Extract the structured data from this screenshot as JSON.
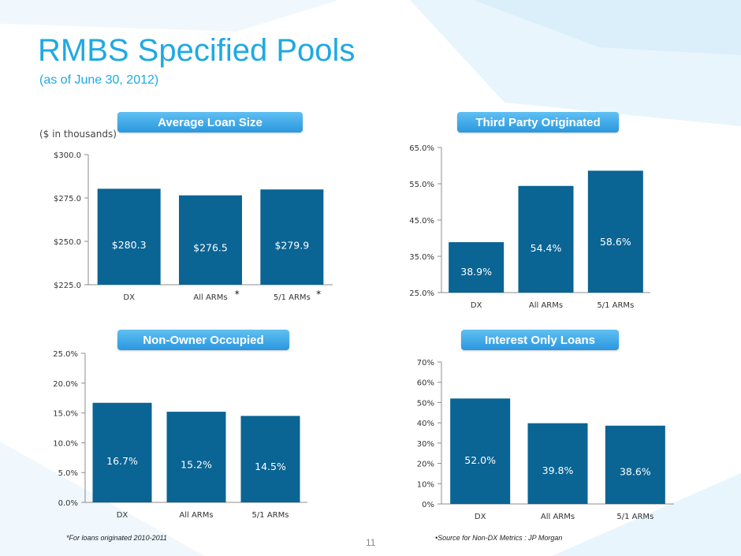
{
  "slide": {
    "title": "RMBS Specified Pools",
    "subtitle": "(as of June 30, 2012)",
    "units_note": "($ in thousands)",
    "page_number": "11",
    "footnote_left": "*For loans originated 2010-2011",
    "footnote_right": "•Source for Non-DX Metrics : JP Morgan",
    "colors": {
      "title": "#1fa9e3",
      "bar": "#0a6494",
      "pill": "#2b97df"
    }
  },
  "chart_data": [
    {
      "id": "avg_loan",
      "type": "bar",
      "title": "Average Loan Size",
      "categories": [
        "DX",
        "All ARMs",
        "5/1 ARMs"
      ],
      "category_marks": [
        "",
        "*",
        "*"
      ],
      "values": [
        280.3,
        276.5,
        279.9
      ],
      "value_labels": [
        "$280.3",
        "$276.5",
        "$279.9"
      ],
      "ylim": [
        225,
        300
      ],
      "yticks": [
        225,
        250,
        275,
        300
      ],
      "ytick_labels": [
        "$225.0",
        "$250.0",
        "$275.0",
        "$300.0"
      ],
      "grid": false
    },
    {
      "id": "third_party",
      "type": "bar",
      "title": "Third Party Originated",
      "categories": [
        "DX",
        "All ARMs",
        "5/1 ARMs"
      ],
      "category_marks": [
        "",
        "",
        ""
      ],
      "values": [
        38.9,
        54.4,
        58.6
      ],
      "value_labels": [
        "38.9%",
        "54.4%",
        "58.6%"
      ],
      "ylim": [
        25,
        65
      ],
      "yticks": [
        25,
        35,
        45,
        55,
        65
      ],
      "ytick_labels": [
        "25.0%",
        "35.0%",
        "45.0%",
        "55.0%",
        "65.0%"
      ],
      "grid": false
    },
    {
      "id": "non_owner",
      "type": "bar",
      "title": "Non-Owner Occupied",
      "categories": [
        "DX",
        "All ARMs",
        "5/1 ARMs"
      ],
      "category_marks": [
        "",
        "",
        ""
      ],
      "values": [
        16.7,
        15.2,
        14.5
      ],
      "value_labels": [
        "16.7%",
        "15.2%",
        "14.5%"
      ],
      "ylim": [
        0,
        25
      ],
      "yticks": [
        0,
        5,
        10,
        15,
        20,
        25
      ],
      "ytick_labels": [
        "0.0%",
        "5.0%",
        "10.0%",
        "15.0%",
        "20.0%",
        "25.0%"
      ],
      "grid": false
    },
    {
      "id": "interest_only",
      "type": "bar",
      "title": "Interest Only Loans",
      "categories": [
        "DX",
        "All ARMs",
        "5/1 ARMs"
      ],
      "category_marks": [
        "",
        "",
        ""
      ],
      "values": [
        52.0,
        39.8,
        38.6
      ],
      "value_labels": [
        "52.0%",
        "39.8%",
        "38.6%"
      ],
      "ylim": [
        0,
        70
      ],
      "yticks": [
        0,
        10,
        20,
        30,
        40,
        50,
        60,
        70
      ],
      "ytick_labels": [
        "0%",
        "10%",
        "20%",
        "30%",
        "40%",
        "50%",
        "60%",
        "70%"
      ],
      "grid": false
    }
  ]
}
